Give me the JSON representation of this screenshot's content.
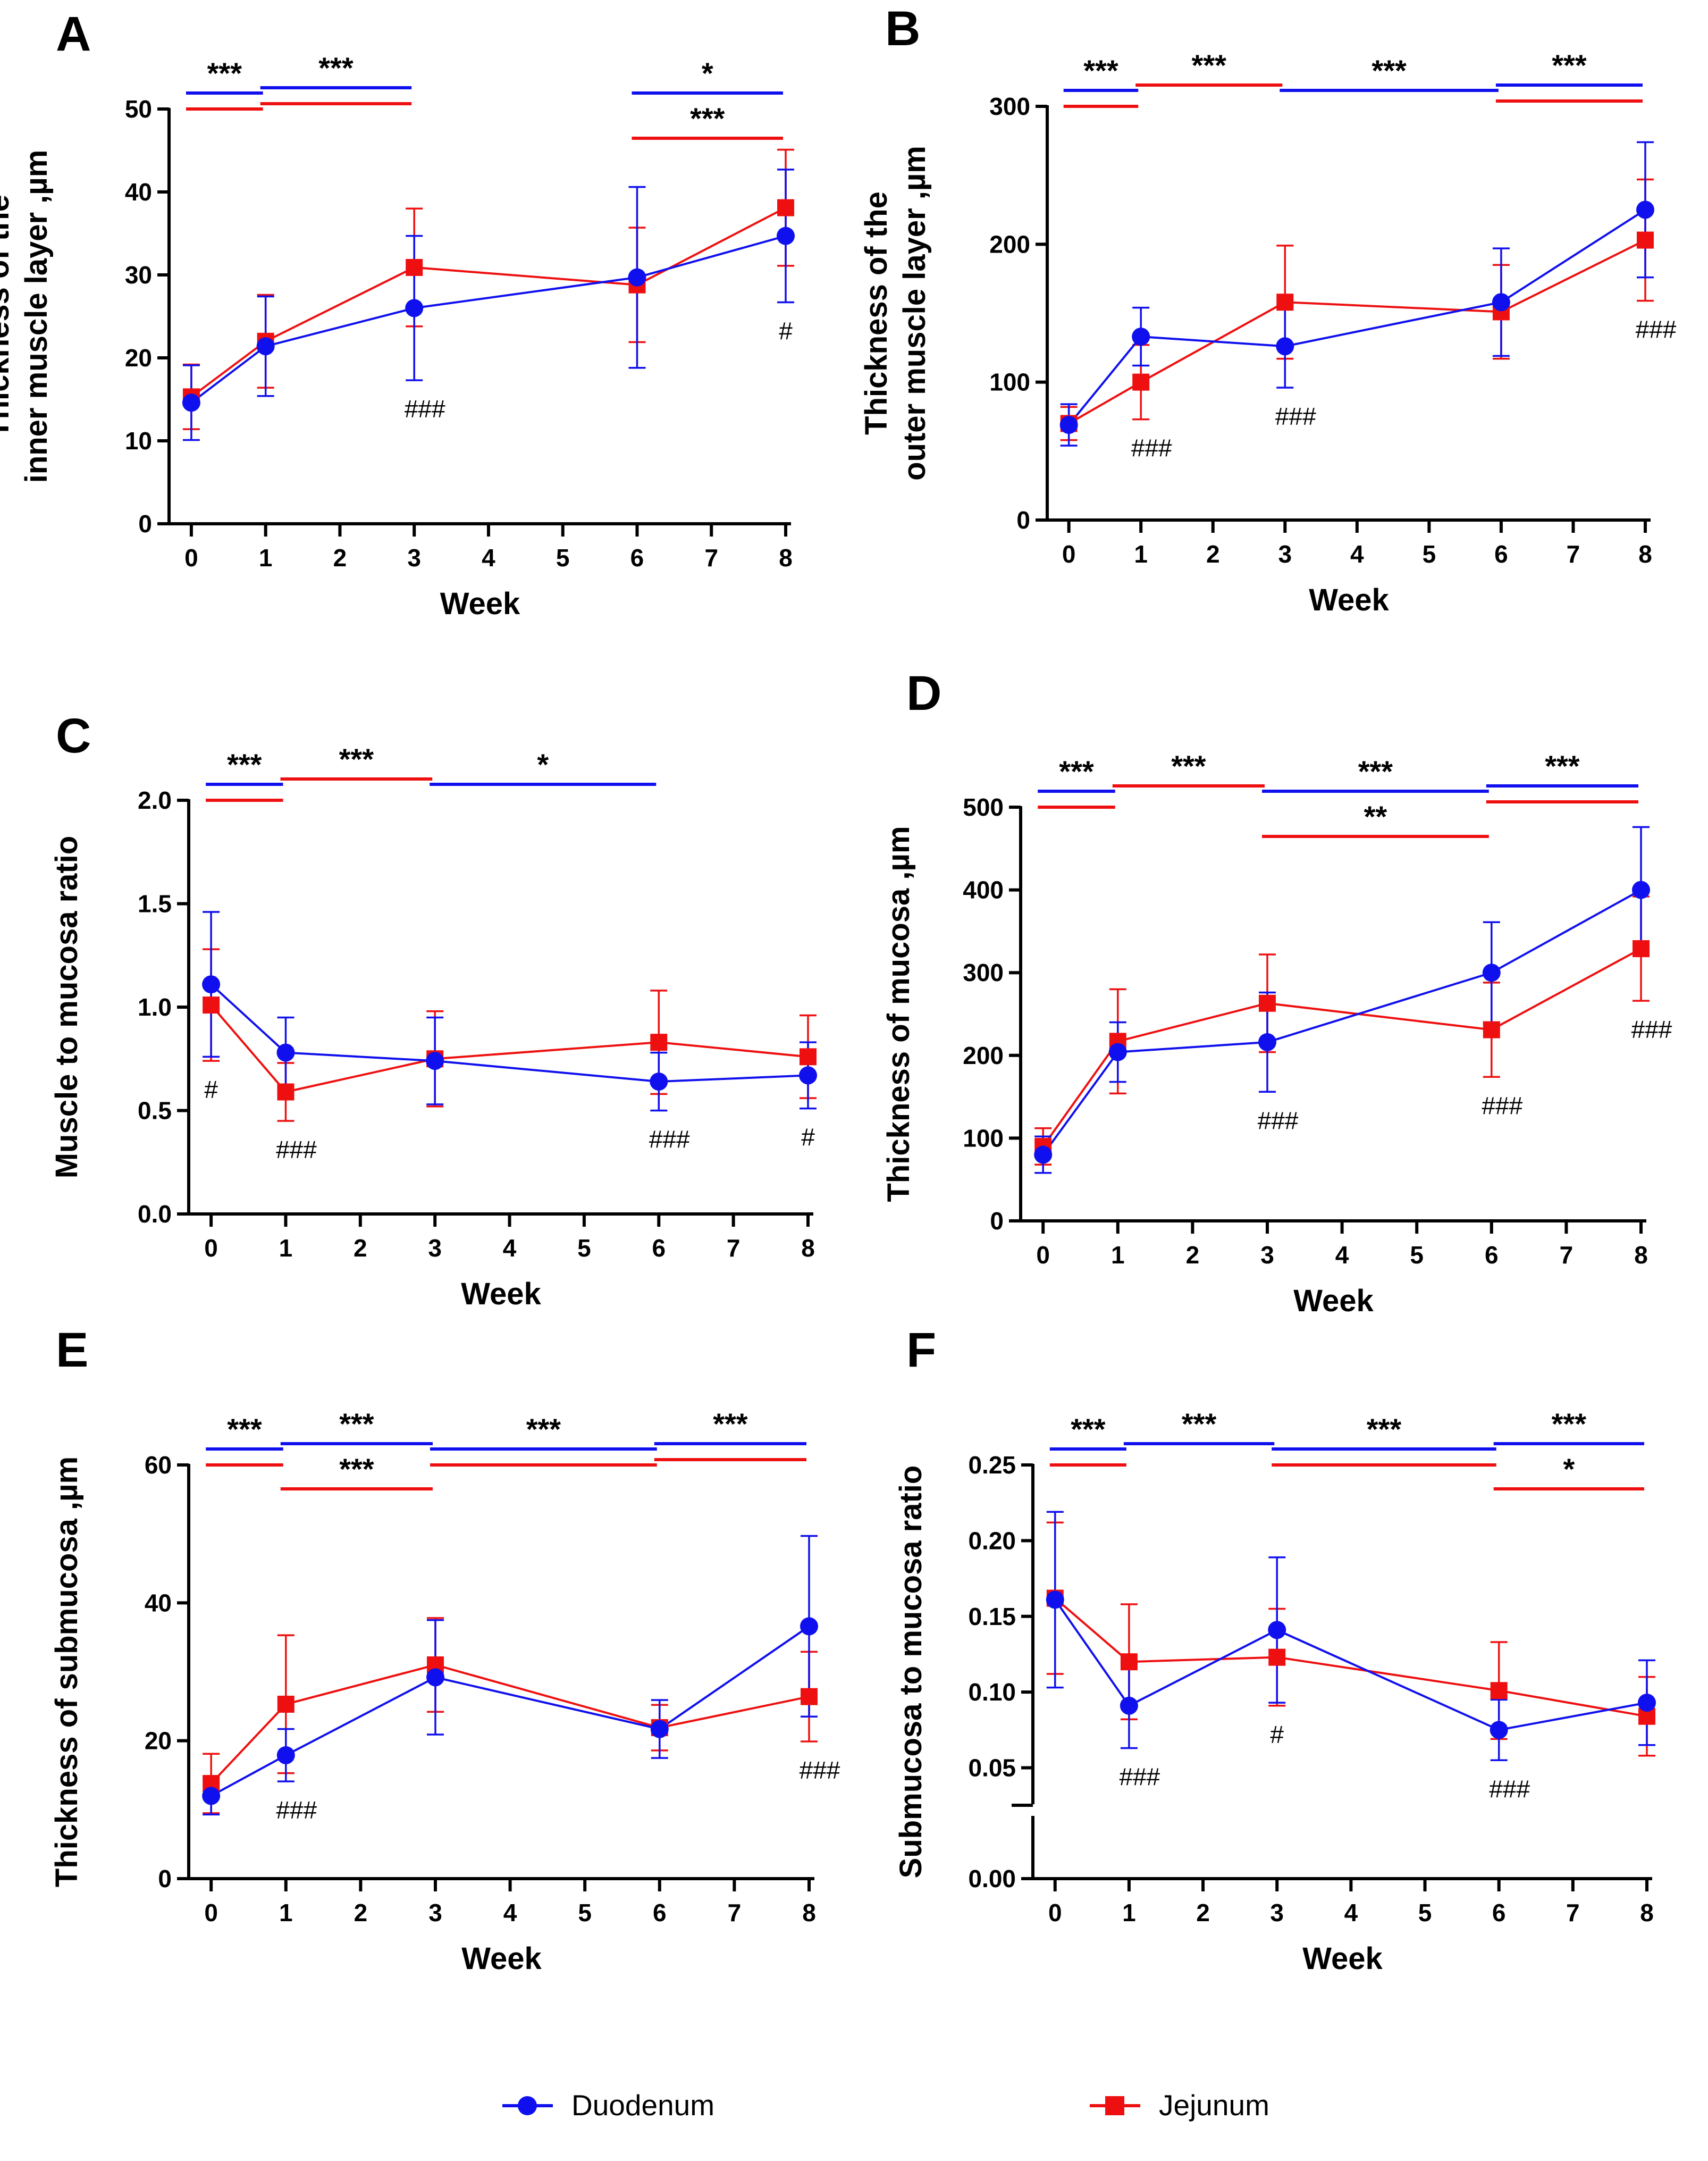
{
  "colors": {
    "duodenum": "#1010ee",
    "jejunum": "#ee1010",
    "axis": "#000000"
  },
  "legend": {
    "items": [
      {
        "label": "Duodenum",
        "color": "#1010ee",
        "marker": "circle"
      },
      {
        "label": "Jejunum",
        "color": "#ee1010",
        "marker": "square"
      }
    ]
  },
  "chart_data": [
    {
      "panel": "A",
      "type": "line",
      "ylabel_lines": [
        "Thickness of the",
        "inner muscle layer ,µm"
      ],
      "xlabel": "Week",
      "ylim": [
        0,
        50
      ],
      "yticks": [
        0,
        10,
        20,
        30,
        40,
        50
      ],
      "ytick_labels": [
        "0",
        "10",
        "20",
        "30",
        "40",
        "50"
      ],
      "xticks": [
        0,
        1,
        2,
        3,
        4,
        5,
        6,
        7,
        8
      ],
      "series": [
        {
          "name": "Duodenum",
          "x": [
            0,
            1,
            3,
            6,
            8
          ],
          "values": [
            14.6,
            21.4,
            26.0,
            29.7,
            34.7
          ],
          "err": [
            4.5,
            6.0,
            8.7,
            10.9,
            8.0
          ]
        },
        {
          "name": "Jejunum",
          "x": [
            0,
            1,
            3,
            6,
            8
          ],
          "values": [
            15.3,
            22.0,
            30.9,
            28.8,
            38.1
          ],
          "err": [
            3.9,
            5.6,
            7.1,
            6.9,
            7.0
          ]
        }
      ],
      "brackets": [
        {
          "x1": 0,
          "x2": 1,
          "stars": "***",
          "lines": [
            "blue",
            "red"
          ]
        },
        {
          "x1": 1,
          "x2": 3,
          "stars": "***",
          "lines": [
            "blue",
            "red"
          ]
        },
        {
          "x1": 6,
          "x2": 8,
          "stars": "*",
          "lines": [
            "blue"
          ]
        },
        {
          "x1": 6,
          "x2": 8,
          "stars": "***",
          "lines": [
            "red"
          ]
        }
      ],
      "hash_marks": [
        {
          "x": 3,
          "text": "###"
        },
        {
          "x": 8,
          "text": "#"
        }
      ]
    },
    {
      "panel": "B",
      "type": "line",
      "ylabel_lines": [
        "Thickness of the",
        "outer muscle layer ,µm"
      ],
      "xlabel": "Week",
      "ylim": [
        0,
        300
      ],
      "yticks": [
        0,
        100,
        200,
        300
      ],
      "ytick_labels": [
        "0",
        "100",
        "200",
        "300"
      ],
      "xticks": [
        0,
        1,
        2,
        3,
        4,
        5,
        6,
        7,
        8
      ],
      "series": [
        {
          "name": "Duodenum",
          "x": [
            0,
            1,
            3,
            6,
            8
          ],
          "values": [
            69,
            133,
            126,
            158,
            225
          ],
          "err": [
            15,
            21,
            30,
            39,
            49
          ]
        },
        {
          "name": "Jejunum",
          "x": [
            0,
            1,
            3,
            6,
            8
          ],
          "values": [
            70,
            100,
            158,
            151,
            203
          ],
          "err": [
            12,
            27,
            41,
            34,
            44
          ]
        }
      ],
      "brackets": [
        {
          "x1": 0,
          "x2": 1,
          "stars": "***",
          "lines": [
            "blue",
            "red"
          ]
        },
        {
          "x1": 1,
          "x2": 3,
          "stars": "***",
          "lines": [
            "red"
          ]
        },
        {
          "x1": 3,
          "x2": 6,
          "stars": "***",
          "lines": [
            "blue"
          ]
        },
        {
          "x1": 6,
          "x2": 8,
          "stars": "***",
          "lines": [
            "blue",
            "red"
          ]
        }
      ],
      "hash_marks": [
        {
          "x": 1,
          "text": "###"
        },
        {
          "x": 3,
          "text": "###"
        },
        {
          "x": 8,
          "text": "###"
        }
      ]
    },
    {
      "panel": "C",
      "type": "line",
      "ylabel_lines": [
        "Muscle to mucosa ratio"
      ],
      "xlabel": "Week",
      "ylim": [
        0,
        2.0
      ],
      "yticks": [
        0,
        0.5,
        1.0,
        1.5,
        2.0
      ],
      "ytick_labels": [
        "0.0",
        "0.5",
        "1.0",
        "1.5",
        "2.0"
      ],
      "xticks": [
        0,
        1,
        2,
        3,
        4,
        5,
        6,
        7,
        8
      ],
      "series": [
        {
          "name": "Duodenum",
          "x": [
            0,
            1,
            3,
            6,
            8
          ],
          "values": [
            1.11,
            0.78,
            0.74,
            0.64,
            0.67
          ],
          "err": [
            0.35,
            0.17,
            0.21,
            0.14,
            0.16
          ]
        },
        {
          "name": "Jejunum",
          "x": [
            0,
            1,
            3,
            6,
            8
          ],
          "values": [
            1.01,
            0.59,
            0.75,
            0.83,
            0.76
          ],
          "err": [
            0.27,
            0.14,
            0.23,
            0.25,
            0.2
          ]
        }
      ],
      "brackets": [
        {
          "x1": 0,
          "x2": 1,
          "stars": "***",
          "lines": [
            "blue",
            "red"
          ]
        },
        {
          "x1": 1,
          "x2": 3,
          "stars": "***",
          "lines": [
            "red"
          ]
        },
        {
          "x1": 3,
          "x2": 6,
          "stars": "*",
          "lines": [
            "blue"
          ]
        }
      ],
      "hash_marks": [
        {
          "x": 0,
          "text": "#"
        },
        {
          "x": 1,
          "text": "###"
        },
        {
          "x": 6,
          "text": "###"
        },
        {
          "x": 8,
          "text": "#"
        }
      ]
    },
    {
      "panel": "D",
      "type": "line",
      "ylabel_lines": [
        "Thickness of mucosa ,µm"
      ],
      "xlabel": "Week",
      "ylim": [
        0,
        500
      ],
      "yticks": [
        0,
        100,
        200,
        300,
        400,
        500
      ],
      "ytick_labels": [
        "0",
        "100",
        "200",
        "300",
        "400",
        "500"
      ],
      "xticks": [
        0,
        1,
        2,
        3,
        4,
        5,
        6,
        7,
        8
      ],
      "series": [
        {
          "name": "Duodenum",
          "x": [
            0,
            1,
            3,
            6,
            8
          ],
          "values": [
            80,
            204,
            216,
            300,
            400
          ],
          "err": [
            22,
            36,
            60,
            61,
            76
          ]
        },
        {
          "name": "Jejunum",
          "x": [
            0,
            1,
            3,
            6,
            8
          ],
          "values": [
            90,
            217,
            263,
            231,
            329
          ],
          "err": [
            22,
            63,
            59,
            57,
            63
          ]
        }
      ],
      "brackets": [
        {
          "x1": 0,
          "x2": 1,
          "stars": "***",
          "lines": [
            "blue",
            "red"
          ]
        },
        {
          "x1": 1,
          "x2": 3,
          "stars": "***",
          "lines": [
            "red"
          ]
        },
        {
          "x1": 3,
          "x2": 6,
          "stars": "***",
          "lines": [
            "blue"
          ]
        },
        {
          "x1": 3,
          "x2": 6,
          "stars": "**",
          "lines": [
            "red"
          ]
        },
        {
          "x1": 6,
          "x2": 8,
          "stars": "***",
          "lines": [
            "blue",
            "red"
          ]
        }
      ],
      "hash_marks": [
        {
          "x": 3,
          "text": "###"
        },
        {
          "x": 6,
          "text": "###"
        },
        {
          "x": 8,
          "text": "###"
        }
      ]
    },
    {
      "panel": "E",
      "type": "line",
      "ylabel_lines": [
        "Thickness of submucosa ,µm"
      ],
      "xlabel": "Week",
      "ylim": [
        0,
        60
      ],
      "yticks": [
        0,
        20,
        40,
        60
      ],
      "ytick_labels": [
        "0",
        "20",
        "40",
        "60"
      ],
      "xticks": [
        0,
        1,
        2,
        3,
        4,
        5,
        6,
        7,
        8
      ],
      "series": [
        {
          "name": "Duodenum",
          "x": [
            0,
            1,
            3,
            6,
            8
          ],
          "values": [
            12.0,
            17.9,
            29.2,
            21.7,
            36.6
          ],
          "err": [
            2.7,
            3.8,
            8.3,
            4.2,
            13.1
          ]
        },
        {
          "name": "Jejunum",
          "x": [
            0,
            1,
            3,
            6,
            8
          ],
          "values": [
            13.8,
            25.3,
            31.0,
            21.9,
            26.4
          ],
          "err": [
            4.3,
            10.0,
            6.8,
            3.3,
            6.5
          ]
        }
      ],
      "brackets": [
        {
          "x1": 0,
          "x2": 1,
          "stars": "***",
          "lines": [
            "blue",
            "red"
          ]
        },
        {
          "x1": 1,
          "x2": 3,
          "stars": "***",
          "lines": [
            "blue"
          ]
        },
        {
          "x1": 1,
          "x2": 3,
          "stars": "***",
          "lines": [
            "red"
          ]
        },
        {
          "x1": 3,
          "x2": 6,
          "stars": "***",
          "lines": [
            "blue",
            "red"
          ]
        },
        {
          "x1": 6,
          "x2": 8,
          "stars": "***",
          "lines": [
            "blue",
            "red"
          ]
        }
      ],
      "hash_marks": [
        {
          "x": 1,
          "text": "###"
        },
        {
          "x": 8,
          "text": "###"
        }
      ]
    },
    {
      "panel": "F",
      "type": "line",
      "ylabel_lines": [
        "Submucosa to mucosa ratio"
      ],
      "xlabel": "Week",
      "ylim": [
        0,
        0.25
      ],
      "axis_break": [
        0.0,
        0.04
      ],
      "yticks": [
        0,
        0.05,
        0.1,
        0.15,
        0.2,
        0.25
      ],
      "ytick_labels": [
        "0.00",
        "0.05",
        "0.10",
        "0.15",
        "0.20",
        "0.25"
      ],
      "xticks": [
        0,
        1,
        2,
        3,
        4,
        5,
        6,
        7,
        8
      ],
      "series": [
        {
          "name": "Duodenum",
          "x": [
            0,
            1,
            3,
            6,
            8
          ],
          "values": [
            0.161,
            0.091,
            0.141,
            0.075,
            0.093
          ],
          "err": [
            0.058,
            0.028,
            0.048,
            0.02,
            0.028
          ]
        },
        {
          "name": "Jejunum",
          "x": [
            0,
            1,
            3,
            6,
            8
          ],
          "values": [
            0.162,
            0.12,
            0.123,
            0.101,
            0.084
          ],
          "err": [
            0.05,
            0.038,
            0.032,
            0.032,
            0.026
          ]
        }
      ],
      "brackets": [
        {
          "x1": 0,
          "x2": 1,
          "stars": "***",
          "lines": [
            "blue",
            "red"
          ]
        },
        {
          "x1": 1,
          "x2": 3,
          "stars": "***",
          "lines": [
            "blue"
          ]
        },
        {
          "x1": 3,
          "x2": 6,
          "stars": "***",
          "lines": [
            "blue",
            "red"
          ]
        },
        {
          "x1": 6,
          "x2": 8,
          "stars": "***",
          "lines": [
            "blue"
          ]
        },
        {
          "x1": 6,
          "x2": 8,
          "stars": "*",
          "lines": [
            "red"
          ]
        }
      ],
      "hash_marks": [
        {
          "x": 1,
          "text": "###"
        },
        {
          "x": 3,
          "text": "#"
        },
        {
          "x": 6,
          "text": "###"
        }
      ]
    }
  ]
}
